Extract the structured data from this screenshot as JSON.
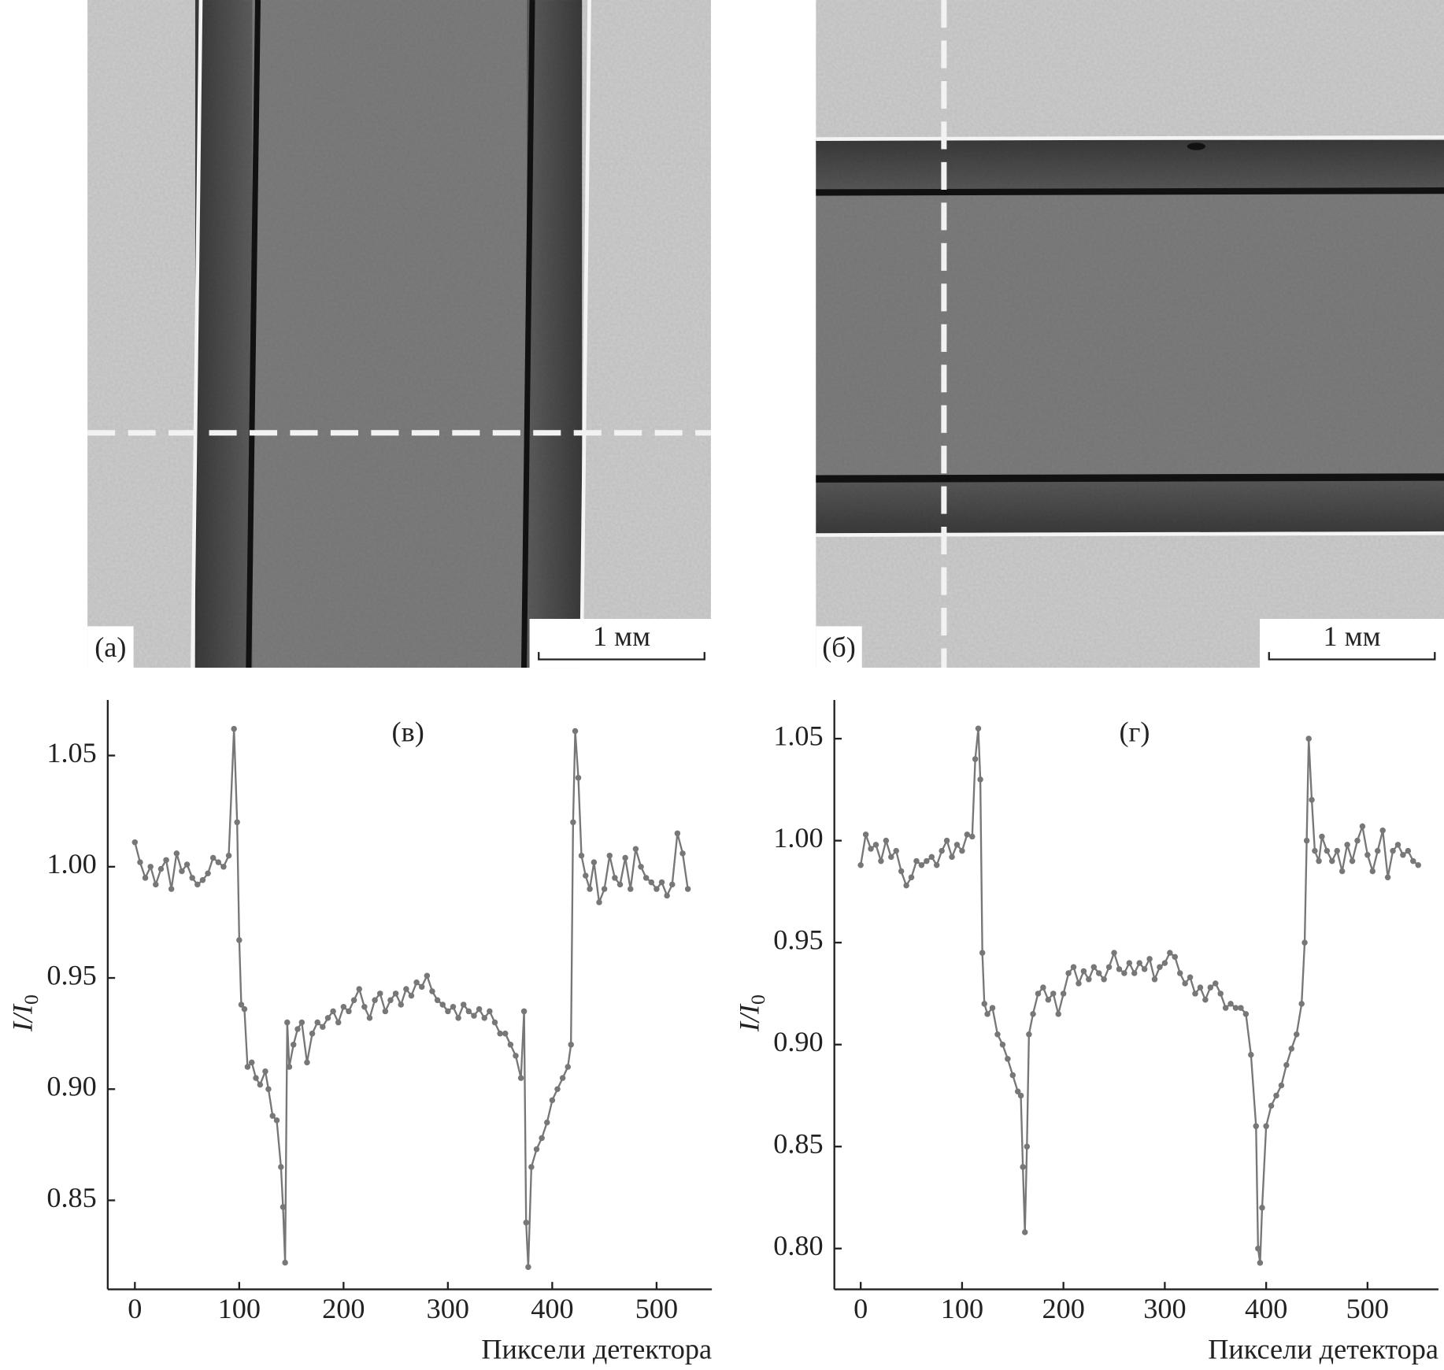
{
  "panels": [
    {
      "label": "(a)",
      "scale_bar": "1 мм"
    },
    {
      "label": "(б)",
      "scale_bar": "1 мм"
    }
  ],
  "chart_data": [
    {
      "type": "line",
      "panel_label": "(в)",
      "xlabel": "Пиксели детектора",
      "ylabel": "I/I",
      "ylabel_subscript": "0",
      "color": "#777777",
      "xlim": [
        -26,
        553
      ],
      "ylim": [
        0.81,
        1.075
      ],
      "xticks": [
        0,
        100,
        200,
        300,
        400,
        500
      ],
      "yticks": [
        0.85,
        {
          "value": 0.9,
          "label": "0.90"
        },
        0.95,
        {
          "value": 1,
          "label": "1.00"
        },
        1.05
      ],
      "x": [
        0,
        5,
        10,
        15,
        20,
        25,
        30,
        35,
        40,
        45,
        50,
        55,
        60,
        65,
        70,
        75,
        80,
        85,
        90,
        95,
        98,
        100,
        102,
        105,
        108,
        112,
        116,
        120,
        125,
        128,
        132,
        136,
        140,
        142,
        144,
        146,
        148,
        152,
        156,
        160,
        165,
        170,
        175,
        180,
        185,
        190,
        195,
        200,
        205,
        210,
        215,
        220,
        225,
        230,
        235,
        240,
        245,
        250,
        255,
        260,
        265,
        270,
        275,
        280,
        285,
        290,
        295,
        300,
        305,
        310,
        315,
        320,
        325,
        330,
        335,
        340,
        345,
        350,
        355,
        360,
        365,
        370,
        373,
        375,
        377,
        380,
        385,
        390,
        395,
        400,
        405,
        410,
        415,
        418,
        420,
        422,
        425,
        428,
        432,
        436,
        440,
        445,
        450,
        455,
        460,
        465,
        470,
        475,
        480,
        485,
        490,
        495,
        500,
        505,
        510,
        515,
        520,
        525,
        530
      ],
      "values": [
        1.011,
        1.002,
        0.995,
        1.0,
        0.992,
        0.999,
        1.003,
        0.99,
        1.006,
        0.998,
        1.001,
        0.995,
        0.992,
        0.994,
        0.997,
        1.004,
        1.002,
        1.0,
        1.005,
        1.062,
        1.02,
        0.967,
        0.938,
        0.936,
        0.91,
        0.912,
        0.905,
        0.902,
        0.908,
        0.9,
        0.888,
        0.886,
        0.865,
        0.847,
        0.822,
        0.93,
        0.91,
        0.92,
        0.927,
        0.93,
        0.912,
        0.925,
        0.93,
        0.928,
        0.932,
        0.935,
        0.93,
        0.937,
        0.935,
        0.94,
        0.945,
        0.937,
        0.932,
        0.94,
        0.943,
        0.935,
        0.94,
        0.943,
        0.938,
        0.945,
        0.942,
        0.948,
        0.946,
        0.951,
        0.944,
        0.94,
        0.938,
        0.935,
        0.937,
        0.932,
        0.938,
        0.935,
        0.933,
        0.936,
        0.932,
        0.935,
        0.93,
        0.925,
        0.925,
        0.92,
        0.915,
        0.905,
        0.935,
        0.84,
        0.82,
        0.865,
        0.873,
        0.878,
        0.885,
        0.895,
        0.9,
        0.905,
        0.91,
        0.92,
        1.02,
        1.061,
        1.04,
        1.005,
        0.996,
        0.99,
        1.002,
        0.984,
        0.99,
        1.005,
        0.995,
        0.992,
        1.004,
        0.99,
        1.008,
        1.0,
        0.995,
        0.993,
        0.99,
        0.993,
        0.987,
        0.992,
        1.015,
        1.006,
        0.99
      ]
    },
    {
      "type": "line",
      "panel_label": "(г)",
      "xlabel": "Пиксели детектора",
      "ylabel": "I/I",
      "ylabel_subscript": "0",
      "color": "#777777",
      "xlim": [
        -26,
        570
      ],
      "ylim": [
        0.78,
        1.069
      ],
      "xticks": [
        0,
        100,
        200,
        300,
        400,
        500
      ],
      "yticks": [
        {
          "value": 0.8,
          "label": "0.80"
        },
        0.85,
        {
          "value": 0.9,
          "label": "0.90"
        },
        0.95,
        {
          "value": 1,
          "label": "1.00"
        },
        1.05
      ],
      "x": [
        0,
        5,
        10,
        15,
        20,
        25,
        30,
        35,
        40,
        45,
        50,
        55,
        60,
        65,
        70,
        75,
        80,
        85,
        90,
        95,
        100,
        105,
        110,
        113,
        116,
        118,
        120,
        122,
        125,
        130,
        135,
        140,
        145,
        150,
        155,
        158,
        160,
        162,
        164,
        166,
        170,
        175,
        180,
        185,
        190,
        195,
        200,
        205,
        210,
        215,
        220,
        225,
        230,
        235,
        240,
        245,
        250,
        255,
        260,
        265,
        270,
        275,
        280,
        285,
        290,
        295,
        300,
        305,
        310,
        315,
        320,
        325,
        330,
        335,
        340,
        345,
        350,
        355,
        360,
        365,
        370,
        375,
        380,
        385,
        390,
        392,
        394,
        396,
        400,
        405,
        410,
        415,
        420,
        425,
        430,
        435,
        438,
        440,
        442,
        445,
        448,
        452,
        455,
        460,
        465,
        470,
        475,
        480,
        485,
        490,
        495,
        500,
        505,
        510,
        515,
        520,
        525,
        530,
        535,
        540,
        545,
        550
      ],
      "values": [
        0.988,
        1.003,
        0.996,
        0.998,
        0.99,
        1.0,
        0.992,
        0.995,
        0.985,
        0.978,
        0.982,
        0.99,
        0.988,
        0.99,
        0.992,
        0.988,
        0.995,
        1.0,
        0.992,
        0.998,
        0.995,
        1.003,
        1.002,
        1.04,
        1.055,
        1.03,
        0.945,
        0.92,
        0.915,
        0.918,
        0.905,
        0.9,
        0.893,
        0.885,
        0.877,
        0.875,
        0.84,
        0.808,
        0.85,
        0.905,
        0.915,
        0.925,
        0.928,
        0.922,
        0.925,
        0.915,
        0.925,
        0.935,
        0.938,
        0.93,
        0.936,
        0.932,
        0.938,
        0.935,
        0.932,
        0.938,
        0.945,
        0.937,
        0.935,
        0.94,
        0.935,
        0.94,
        0.937,
        0.942,
        0.932,
        0.938,
        0.94,
        0.945,
        0.943,
        0.935,
        0.93,
        0.933,
        0.925,
        0.928,
        0.922,
        0.928,
        0.93,
        0.925,
        0.918,
        0.92,
        0.918,
        0.918,
        0.915,
        0.895,
        0.86,
        0.8,
        0.793,
        0.82,
        0.86,
        0.87,
        0.875,
        0.88,
        0.89,
        0.898,
        0.905,
        0.92,
        0.95,
        1.0,
        1.05,
        1.02,
        0.995,
        0.99,
        1.002,
        0.995,
        0.99,
        0.995,
        0.985,
        0.998,
        0.99,
        1.0,
        1.007,
        0.993,
        0.985,
        0.995,
        1.005,
        0.982,
        0.995,
        0.998,
        0.993,
        0.995,
        0.99,
        0.988
      ]
    }
  ]
}
